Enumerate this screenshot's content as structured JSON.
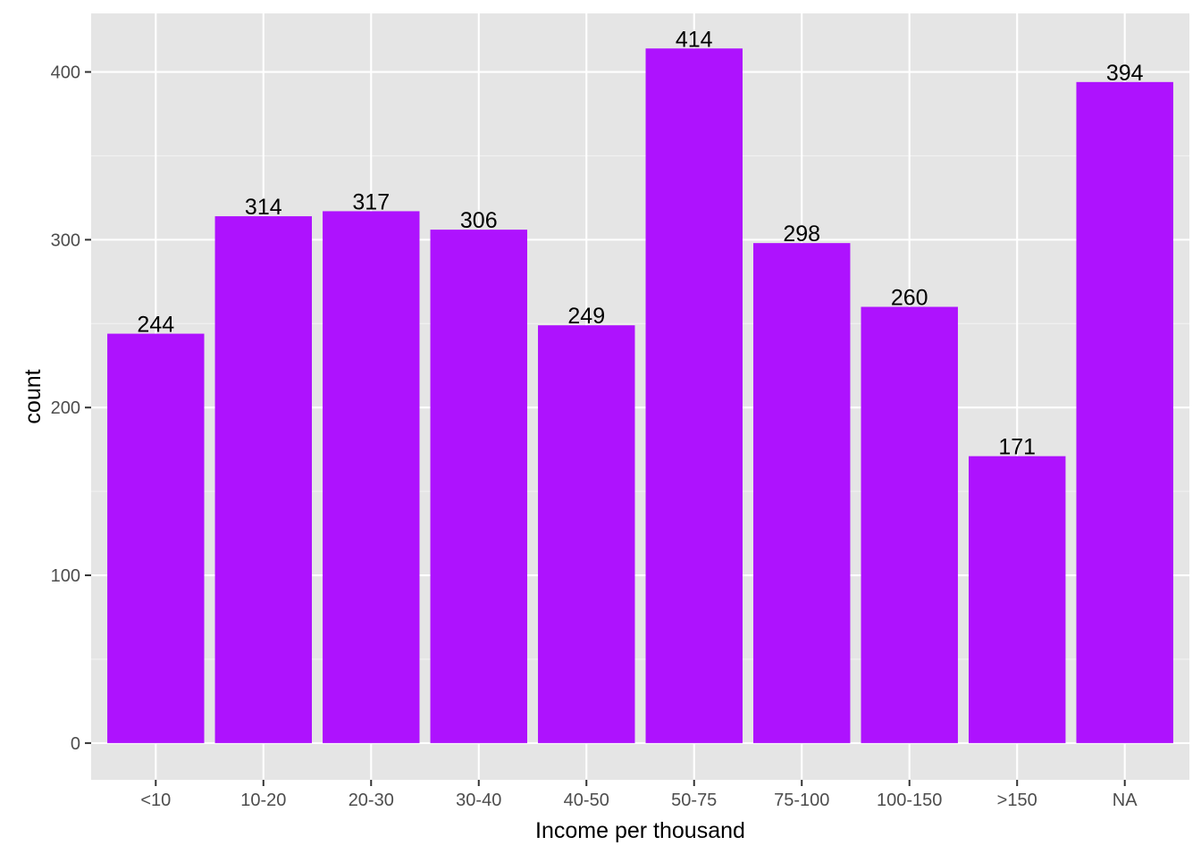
{
  "chart_data": {
    "type": "bar",
    "title": "",
    "xlabel": "Income per thousand",
    "ylabel": "count",
    "categories": [
      "<10",
      "10-20",
      "20-30",
      "30-40",
      "40-50",
      "50-75",
      "75-100",
      "100-150",
      ">150",
      "NA"
    ],
    "values": [
      244,
      314,
      317,
      306,
      249,
      414,
      298,
      260,
      171,
      394
    ],
    "data_labels": [
      "244",
      "314",
      "317",
      "306",
      "249",
      "414",
      "298",
      "260",
      "171",
      "394"
    ],
    "ylim": [
      -21.9,
      434.9
    ],
    "yticks": [
      0,
      100,
      200,
      300,
      400
    ],
    "ytick_labels": [
      "0",
      "100",
      "200",
      "300",
      "400"
    ],
    "grid": true,
    "legend": "none",
    "colors": {
      "bar": "#AE12FE",
      "panel_background": "#E5E5E5",
      "grid_major": "#FFFFFF",
      "grid_minor": "#F2F2F2",
      "tick_text": "#4D4D4D",
      "axis_title": "#000000",
      "tick_mark": "#333333"
    }
  }
}
